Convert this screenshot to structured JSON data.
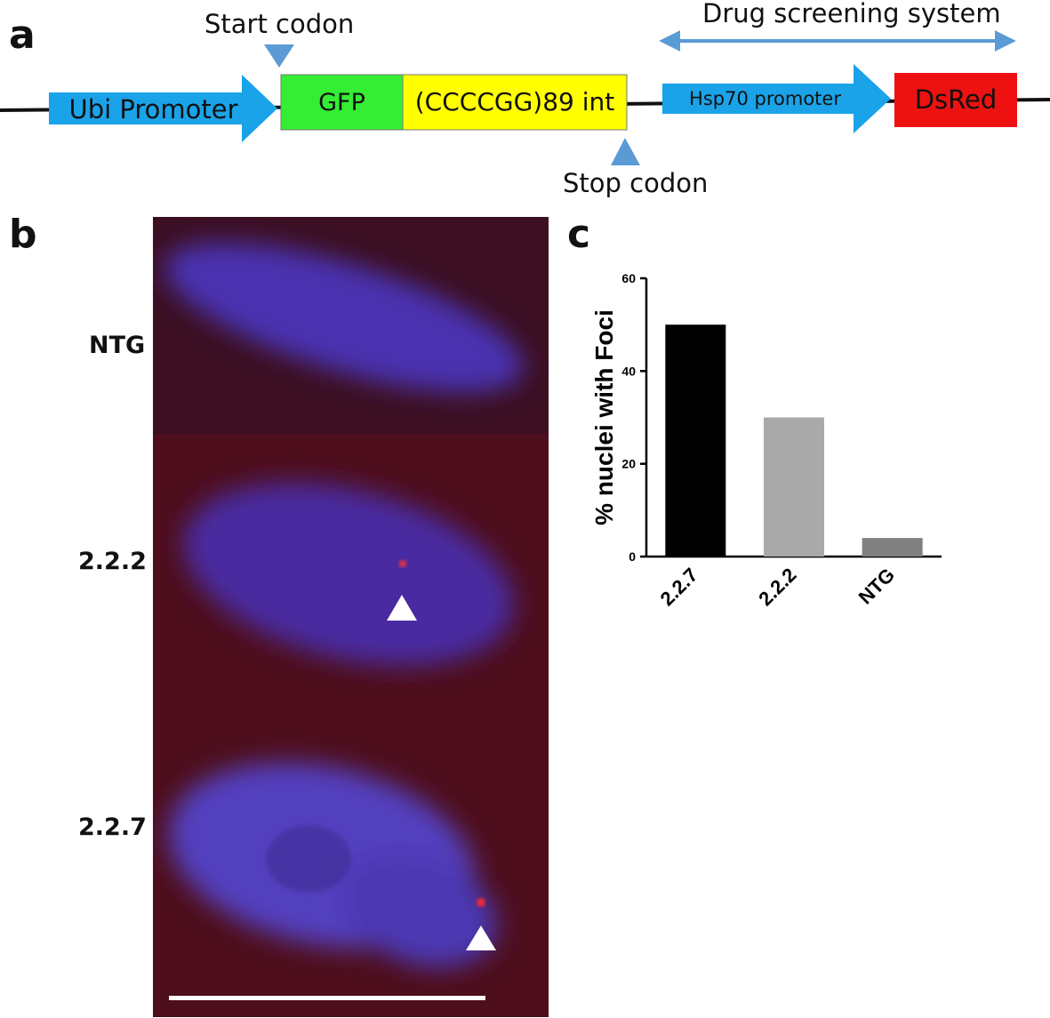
{
  "panels": {
    "a": "a",
    "b": "b",
    "c": "c"
  },
  "construct": {
    "start_codon": "Start codon",
    "stop_codon": "Stop codon",
    "drug_screening": "Drug screening system",
    "elements": {
      "ubi": "Ubi Promoter",
      "gfp": "GFP",
      "repeat": "(CCCCGG)89 int",
      "hsp70": "Hsp70 promoter",
      "dsred": "DsRed"
    },
    "colors": {
      "promoter": "#1aa3e8",
      "gfp": "#33ee33",
      "repeat": "#ffff00",
      "dsred": "#ee1111",
      "marker": "#5b9bd5",
      "line": "#111111"
    }
  },
  "micrograph": {
    "rows": [
      "NTG",
      "2.2.2",
      "2.2.7"
    ],
    "foci_marker": "white-triangle-marker",
    "scale_bar": "white-scale-bar"
  },
  "chart_data": {
    "type": "bar",
    "categories": [
      "2.2.7",
      "2.2.2",
      "NTG"
    ],
    "values": [
      50,
      30,
      4
    ],
    "colors": [
      "#000000",
      "#a9a9a9",
      "#808080"
    ],
    "ylabel": "% nuclei with Foci",
    "xlabel": "",
    "ylim": [
      0,
      60
    ],
    "yticks": [
      0,
      20,
      40,
      60
    ],
    "grid": false
  }
}
